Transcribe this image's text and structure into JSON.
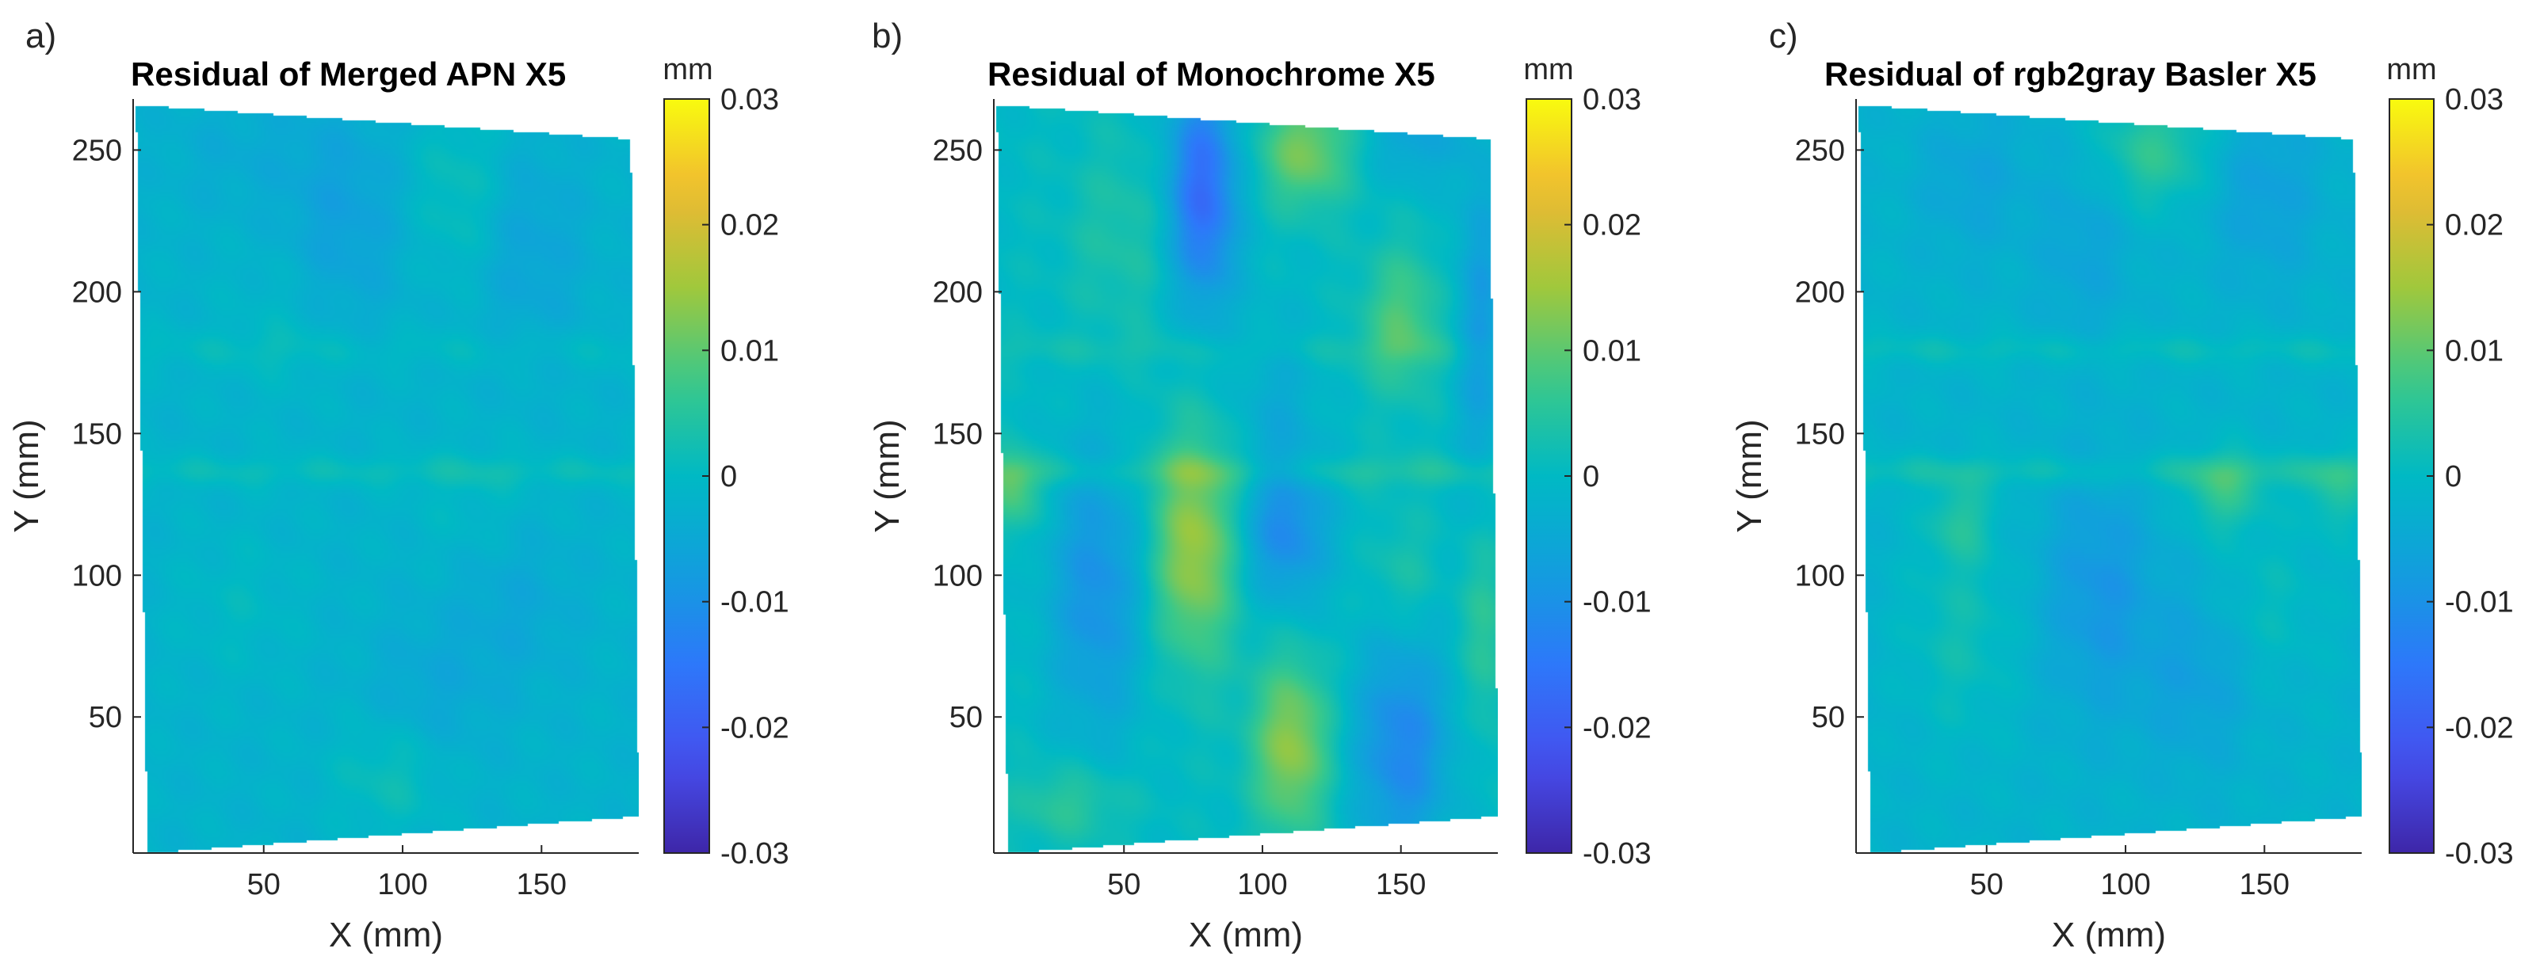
{
  "chart_data": [
    {
      "type": "heatmap",
      "panel_label": "a)",
      "title": "Residual of Merged APN X5",
      "xlabel": "X (mm)",
      "ylabel": "Y (mm)",
      "xlim": [
        3,
        185
      ],
      "ylim": [
        2,
        268
      ],
      "xticks": [
        50,
        100,
        150
      ],
      "yticks": [
        50,
        100,
        150,
        200,
        250
      ],
      "colorbar": {
        "unit": "mm",
        "range": [
          -0.03,
          0.03
        ],
        "ticks": [
          "-0.03",
          "-0.02",
          "-0.01",
          "0",
          "0.01",
          "0.02",
          "0.03"
        ]
      },
      "field": {
        "base": -0.002,
        "features": [
          {
            "x": 78,
            "y": 225,
            "sx": 15,
            "sy": 28,
            "v": -0.005
          },
          {
            "x": 120,
            "y": 235,
            "sx": 12,
            "sy": 22,
            "v": 0.004
          },
          {
            "x": 145,
            "y": 215,
            "sx": 14,
            "sy": 25,
            "v": -0.004
          },
          {
            "x": 40,
            "y": 250,
            "sx": 18,
            "sy": 15,
            "v": -0.002
          },
          {
            "x": 60,
            "y": 190,
            "sx": 16,
            "sy": 20,
            "v": 0.002
          },
          {
            "x": 95,
            "y": 30,
            "sx": 14,
            "sy": 14,
            "v": 0.004
          },
          {
            "x": 140,
            "y": 90,
            "sx": 15,
            "sy": 20,
            "v": -0.003
          },
          {
            "x": 40,
            "y": 90,
            "sx": 15,
            "sy": 18,
            "v": 0.002
          },
          {
            "x": 110,
            "y": 60,
            "sx": 16,
            "sy": 18,
            "v": -0.003
          },
          {
            "x": 125,
            "y": 125,
            "sx": 15,
            "sy": 15,
            "v": 0.002
          }
        ],
        "bands": [
          {
            "y": 180,
            "w": 5,
            "v": 0.002
          },
          {
            "y": 137,
            "w": 4,
            "v": 0.003
          }
        ]
      }
    },
    {
      "type": "heatmap",
      "panel_label": "b)",
      "title": "Residual of Monochrome X5",
      "xlabel": "X (mm)",
      "ylabel": "Y (mm)",
      "xlim": [
        3,
        185
      ],
      "ylim": [
        2,
        268
      ],
      "xticks": [
        50,
        100,
        150
      ],
      "yticks": [
        50,
        100,
        150,
        200,
        250
      ],
      "colorbar": {
        "unit": "mm",
        "range": [
          -0.03,
          0.03
        ],
        "ticks": [
          "-0.03",
          "-0.02",
          "-0.01",
          "0",
          "0.01",
          "0.02",
          "0.03"
        ]
      },
      "field": {
        "base": 0.0,
        "features": [
          {
            "x": 78,
            "y": 235,
            "sx": 9,
            "sy": 28,
            "v": -0.018
          },
          {
            "x": 115,
            "y": 250,
            "sx": 12,
            "sy": 14,
            "v": 0.012
          },
          {
            "x": 155,
            "y": 255,
            "sx": 12,
            "sy": 12,
            "v": -0.006
          },
          {
            "x": 150,
            "y": 190,
            "sx": 10,
            "sy": 18,
            "v": 0.009
          },
          {
            "x": 178,
            "y": 190,
            "sx": 6,
            "sy": 40,
            "v": -0.008
          },
          {
            "x": 50,
            "y": 220,
            "sx": 15,
            "sy": 25,
            "v": 0.004
          },
          {
            "x": 105,
            "y": 160,
            "sx": 10,
            "sy": 22,
            "v": -0.004
          },
          {
            "x": 75,
            "y": 110,
            "sx": 11,
            "sy": 28,
            "v": 0.015
          },
          {
            "x": 40,
            "y": 95,
            "sx": 12,
            "sy": 35,
            "v": -0.01
          },
          {
            "x": 108,
            "y": 115,
            "sx": 11,
            "sy": 18,
            "v": -0.011
          },
          {
            "x": 110,
            "y": 40,
            "sx": 10,
            "sy": 22,
            "v": 0.014
          },
          {
            "x": 150,
            "y": 40,
            "sx": 12,
            "sy": 28,
            "v": -0.012
          },
          {
            "x": 10,
            "y": 130,
            "sx": 7,
            "sy": 10,
            "v": 0.009
          },
          {
            "x": 150,
            "y": 100,
            "sx": 9,
            "sy": 15,
            "v": 0.004
          },
          {
            "x": 180,
            "y": 80,
            "sx": 6,
            "sy": 25,
            "v": 0.006
          },
          {
            "x": 30,
            "y": 20,
            "sx": 15,
            "sy": 10,
            "v": 0.006
          }
        ],
        "bands": [
          {
            "y": 180,
            "w": 4,
            "v": 0.002
          },
          {
            "y": 137,
            "w": 4,
            "v": 0.004
          }
        ]
      }
    },
    {
      "type": "heatmap",
      "panel_label": "c)",
      "title": "Residual of rgb2gray Basler X5",
      "xlabel": "X (mm)",
      "ylabel": "Y (mm)",
      "xlim": [
        3,
        185
      ],
      "ylim": [
        2,
        268
      ],
      "xticks": [
        50,
        100,
        150
      ],
      "yticks": [
        50,
        100,
        150,
        200,
        250
      ],
      "colorbar": {
        "unit": "mm",
        "range": [
          -0.03,
          0.03
        ],
        "ticks": [
          "-0.03",
          "-0.02",
          "-0.01",
          "0",
          "0.01",
          "0.02",
          "0.03"
        ]
      },
      "field": {
        "base": -0.002,
        "features": [
          {
            "x": 110,
            "y": 250,
            "sx": 14,
            "sy": 14,
            "v": 0.008
          },
          {
            "x": 45,
            "y": 240,
            "sx": 14,
            "sy": 18,
            "v": -0.004
          },
          {
            "x": 150,
            "y": 235,
            "sx": 14,
            "sy": 22,
            "v": -0.005
          },
          {
            "x": 85,
            "y": 215,
            "sx": 12,
            "sy": 22,
            "v": -0.004
          },
          {
            "x": 90,
            "y": 95,
            "sx": 14,
            "sy": 30,
            "v": -0.007
          },
          {
            "x": 125,
            "y": 65,
            "sx": 14,
            "sy": 22,
            "v": -0.005
          },
          {
            "x": 40,
            "y": 80,
            "sx": 14,
            "sy": 25,
            "v": 0.004
          },
          {
            "x": 135,
            "y": 130,
            "sx": 10,
            "sy": 10,
            "v": 0.008
          },
          {
            "x": 150,
            "y": 90,
            "sx": 14,
            "sy": 18,
            "v": 0.003
          },
          {
            "x": 175,
            "y": 130,
            "sx": 8,
            "sy": 10,
            "v": 0.006
          },
          {
            "x": 40,
            "y": 120,
            "sx": 8,
            "sy": 10,
            "v": 0.006
          }
        ],
        "bands": [
          {
            "y": 180,
            "w": 4,
            "v": 0.003
          },
          {
            "y": 137,
            "w": 4,
            "v": 0.004
          }
        ]
      }
    }
  ]
}
